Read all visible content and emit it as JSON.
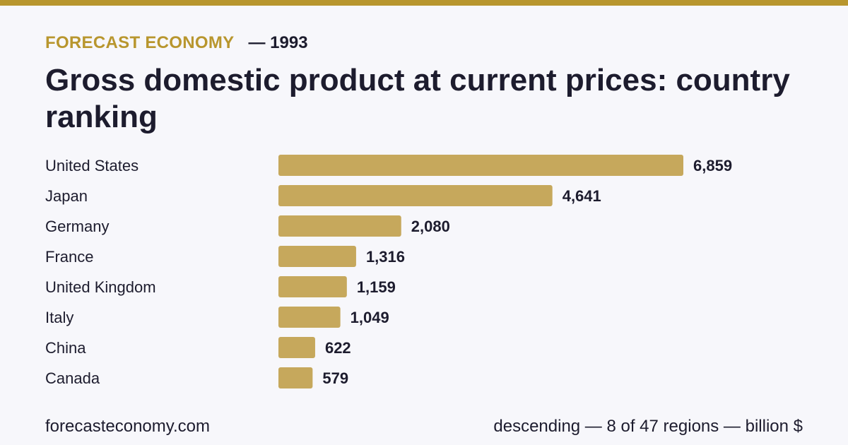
{
  "header": {
    "brand": "FORECAST ECONOMY",
    "year": "— 1993",
    "title": "Gross domestic product at current prices: country ranking"
  },
  "footer": {
    "site": "forecasteconomy.com",
    "sort": "descending",
    "separator": " — ",
    "count": "8 of 47 regions",
    "unit": "billion $"
  },
  "colors": {
    "accent": "#b8962e",
    "bar": "#c6a85c",
    "text": "#1d1c2e",
    "background": "#f7f7fb"
  },
  "chart_data": {
    "type": "bar",
    "orientation": "horizontal",
    "title": "Gross domestic product at current prices: country ranking",
    "categories": [
      "United States",
      "Japan",
      "Germany",
      "France",
      "United Kingdom",
      "Italy",
      "China",
      "Canada"
    ],
    "values": [
      6859,
      4641,
      2080,
      1316,
      1159,
      1049,
      622,
      579
    ],
    "value_labels": [
      "6,859",
      "4,641",
      "2,080",
      "1,316",
      "1,159",
      "1,049",
      "622",
      "579"
    ],
    "unit": "billion $",
    "xlim": [
      0,
      6859
    ],
    "grid": false,
    "legend": "none"
  }
}
